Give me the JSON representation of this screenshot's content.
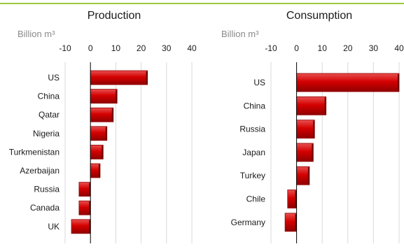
{
  "colors": {
    "top_rule": "#9dc93b",
    "bar_dark": "#8f0000",
    "bar_mid": "#d40000",
    "bar_light": "#e85050",
    "grid": "#d9d9d9",
    "axis": "#000000"
  },
  "chart_data": [
    {
      "type": "bar",
      "orientation": "horizontal",
      "title": "Production",
      "unit_label": "Billion m³",
      "categories": [
        "US",
        "China",
        "Qatar",
        "Nigeria",
        "Turkmenistan",
        "Azerbaijan",
        "Russia",
        "Canada",
        "UK"
      ],
      "values": [
        22.5,
        10.5,
        9,
        6.5,
        5,
        3.8,
        -4.5,
        -4.5,
        -7.5
      ],
      "xlim": [
        -10,
        40
      ],
      "ticks": [
        "-10",
        "0",
        "10",
        "20",
        "30",
        "40"
      ],
      "grid": true
    },
    {
      "type": "bar",
      "orientation": "horizontal",
      "title": "Consumption",
      "unit_label": "Billion m³",
      "categories": [
        "US",
        "China",
        "Russia",
        "Japan",
        "Turkey",
        "Chile",
        "Germany"
      ],
      "values": [
        40,
        11.5,
        7,
        6.5,
        5,
        -3.5,
        -4.5
      ],
      "xlim": [
        -10,
        40
      ],
      "ticks": [
        "-10",
        "0",
        "10",
        "20",
        "30",
        "40"
      ],
      "grid": true
    }
  ]
}
